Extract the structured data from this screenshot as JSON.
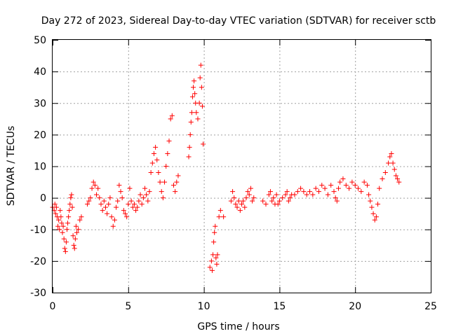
{
  "chart_data": {
    "type": "scatter",
    "title": "Day 272 of 2023, Sidereal Day-to-day VTEC variation (SDTVAR) for receiver sctb",
    "xlabel": "GPS time / hours",
    "ylabel": "SDTVAR / TECUs",
    "xlim": [
      0,
      25
    ],
    "ylim": [
      -30,
      50
    ],
    "xticks": [
      0,
      5,
      10,
      15,
      20,
      25
    ],
    "yticks": [
      -30,
      -20,
      -10,
      0,
      10,
      20,
      30,
      40,
      50
    ],
    "grid": true,
    "marker": "+",
    "series": [
      {
        "name": "SDTVAR",
        "color": "#ff0000",
        "points": [
          [
            0.0,
            -3
          ],
          [
            0.1,
            -4
          ],
          [
            0.15,
            -2
          ],
          [
            0.2,
            -5
          ],
          [
            0.25,
            -3
          ],
          [
            0.3,
            -6
          ],
          [
            0.35,
            -9
          ],
          [
            0.4,
            -7
          ],
          [
            0.45,
            -10
          ],
          [
            0.5,
            -4
          ],
          [
            0.55,
            -6
          ],
          [
            0.6,
            -8
          ],
          [
            0.65,
            -11
          ],
          [
            0.7,
            -9
          ],
          [
            0.75,
            -13
          ],
          [
            0.8,
            -16
          ],
          [
            0.85,
            -17
          ],
          [
            0.9,
            -14
          ],
          [
            0.95,
            -10
          ],
          [
            1.0,
            -8
          ],
          [
            1.05,
            -6
          ],
          [
            1.1,
            -4
          ],
          [
            1.15,
            -2
          ],
          [
            1.2,
            0
          ],
          [
            1.25,
            1
          ],
          [
            1.3,
            -3
          ],
          [
            1.35,
            -12
          ],
          [
            1.4,
            -15
          ],
          [
            1.45,
            -16
          ],
          [
            1.5,
            -13
          ],
          [
            1.55,
            -9
          ],
          [
            1.6,
            -11
          ],
          [
            1.7,
            -10
          ],
          [
            1.8,
            -7
          ],
          [
            1.9,
            -6
          ],
          [
            2.3,
            -2
          ],
          [
            2.4,
            -1
          ],
          [
            2.5,
            0
          ],
          [
            2.6,
            3
          ],
          [
            2.7,
            5
          ],
          [
            2.8,
            4
          ],
          [
            2.9,
            1
          ],
          [
            3.0,
            3
          ],
          [
            3.1,
            0
          ],
          [
            3.2,
            -2
          ],
          [
            3.3,
            -4
          ],
          [
            3.4,
            -1
          ],
          [
            3.5,
            -3
          ],
          [
            3.6,
            -5
          ],
          [
            3.7,
            -2
          ],
          [
            3.8,
            0
          ],
          [
            3.9,
            -6
          ],
          [
            4.0,
            -9
          ],
          [
            4.1,
            -7
          ],
          [
            4.2,
            -3
          ],
          [
            4.3,
            -1
          ],
          [
            4.4,
            4
          ],
          [
            4.5,
            2
          ],
          [
            4.6,
            0
          ],
          [
            4.7,
            -4
          ],
          [
            4.8,
            -5
          ],
          [
            4.9,
            -6
          ],
          [
            5.0,
            -2
          ],
          [
            5.1,
            3
          ],
          [
            5.2,
            -1
          ],
          [
            5.3,
            -3
          ],
          [
            5.4,
            -2
          ],
          [
            5.5,
            -4
          ],
          [
            5.6,
            -3
          ],
          [
            5.7,
            -1
          ],
          [
            5.8,
            1
          ],
          [
            5.9,
            -2
          ],
          [
            6.0,
            0
          ],
          [
            6.1,
            3
          ],
          [
            6.2,
            1
          ],
          [
            6.3,
            -1
          ],
          [
            6.4,
            2
          ],
          [
            6.5,
            8
          ],
          [
            6.6,
            11
          ],
          [
            6.7,
            14
          ],
          [
            6.8,
            16
          ],
          [
            6.9,
            12
          ],
          [
            7.0,
            8
          ],
          [
            7.1,
            5
          ],
          [
            7.2,
            2
          ],
          [
            7.3,
            0
          ],
          [
            7.4,
            5
          ],
          [
            7.5,
            10
          ],
          [
            7.6,
            14
          ],
          [
            7.7,
            18
          ],
          [
            7.8,
            25
          ],
          [
            7.9,
            26
          ],
          [
            8.0,
            4
          ],
          [
            8.1,
            2
          ],
          [
            8.2,
            5
          ],
          [
            8.3,
            7
          ],
          [
            9.0,
            13
          ],
          [
            9.05,
            16
          ],
          [
            9.1,
            20
          ],
          [
            9.15,
            24
          ],
          [
            9.2,
            27
          ],
          [
            9.25,
            32
          ],
          [
            9.3,
            35
          ],
          [
            9.35,
            37
          ],
          [
            9.4,
            33
          ],
          [
            9.45,
            30
          ],
          [
            9.5,
            27
          ],
          [
            9.6,
            25
          ],
          [
            9.7,
            30
          ],
          [
            9.75,
            38
          ],
          [
            9.8,
            42
          ],
          [
            9.85,
            35
          ],
          [
            9.9,
            29
          ],
          [
            9.95,
            17
          ],
          [
            10.4,
            -22
          ],
          [
            10.5,
            -20
          ],
          [
            10.55,
            -23
          ],
          [
            10.6,
            -18
          ],
          [
            10.65,
            -14
          ],
          [
            10.7,
            -11
          ],
          [
            10.75,
            -9
          ],
          [
            10.8,
            -19
          ],
          [
            10.85,
            -21
          ],
          [
            10.9,
            -18
          ],
          [
            11.0,
            -6
          ],
          [
            11.1,
            -4
          ],
          [
            11.3,
            -6
          ],
          [
            11.8,
            -1
          ],
          [
            11.9,
            2
          ],
          [
            12.0,
            0
          ],
          [
            12.1,
            -2
          ],
          [
            12.2,
            -3
          ],
          [
            12.3,
            -1
          ],
          [
            12.4,
            -4
          ],
          [
            12.5,
            -2
          ],
          [
            12.6,
            -1
          ],
          [
            12.7,
            -3
          ],
          [
            12.8,
            0
          ],
          [
            12.9,
            2
          ],
          [
            13.0,
            1
          ],
          [
            13.1,
            3
          ],
          [
            13.2,
            -1
          ],
          [
            13.3,
            0
          ],
          [
            13.9,
            -1
          ],
          [
            14.1,
            -2
          ],
          [
            14.3,
            1
          ],
          [
            14.4,
            2
          ],
          [
            14.5,
            -1
          ],
          [
            14.6,
            0
          ],
          [
            14.7,
            -2
          ],
          [
            14.8,
            1
          ],
          [
            14.9,
            -2
          ],
          [
            15.0,
            -1
          ],
          [
            15.2,
            0
          ],
          [
            15.4,
            1
          ],
          [
            15.5,
            2
          ],
          [
            15.6,
            -1
          ],
          [
            15.7,
            0
          ],
          [
            15.8,
            1
          ],
          [
            16.0,
            1
          ],
          [
            16.2,
            2
          ],
          [
            16.4,
            3
          ],
          [
            16.6,
            2
          ],
          [
            16.8,
            1
          ],
          [
            17.0,
            2
          ],
          [
            17.2,
            1
          ],
          [
            17.4,
            3
          ],
          [
            17.6,
            2
          ],
          [
            17.8,
            4
          ],
          [
            18.0,
            3
          ],
          [
            18.2,
            1
          ],
          [
            18.4,
            4
          ],
          [
            18.6,
            2
          ],
          [
            18.7,
            0
          ],
          [
            18.8,
            -1
          ],
          [
            18.9,
            3
          ],
          [
            19.0,
            5
          ],
          [
            19.2,
            6
          ],
          [
            19.4,
            4
          ],
          [
            19.6,
            3
          ],
          [
            19.8,
            5
          ],
          [
            20.0,
            4
          ],
          [
            20.2,
            3
          ],
          [
            20.4,
            2
          ],
          [
            20.6,
            5
          ],
          [
            20.8,
            4
          ],
          [
            20.9,
            1
          ],
          [
            21.0,
            -1
          ],
          [
            21.1,
            -3
          ],
          [
            21.2,
            -5
          ],
          [
            21.3,
            -7
          ],
          [
            21.4,
            -6
          ],
          [
            21.5,
            -2
          ],
          [
            21.6,
            3
          ],
          [
            21.8,
            6
          ],
          [
            22.0,
            8
          ],
          [
            22.2,
            11
          ],
          [
            22.3,
            13
          ],
          [
            22.4,
            14
          ],
          [
            22.5,
            11
          ],
          [
            22.6,
            9
          ],
          [
            22.7,
            7
          ],
          [
            22.8,
            6
          ],
          [
            22.9,
            5
          ]
        ]
      }
    ]
  }
}
